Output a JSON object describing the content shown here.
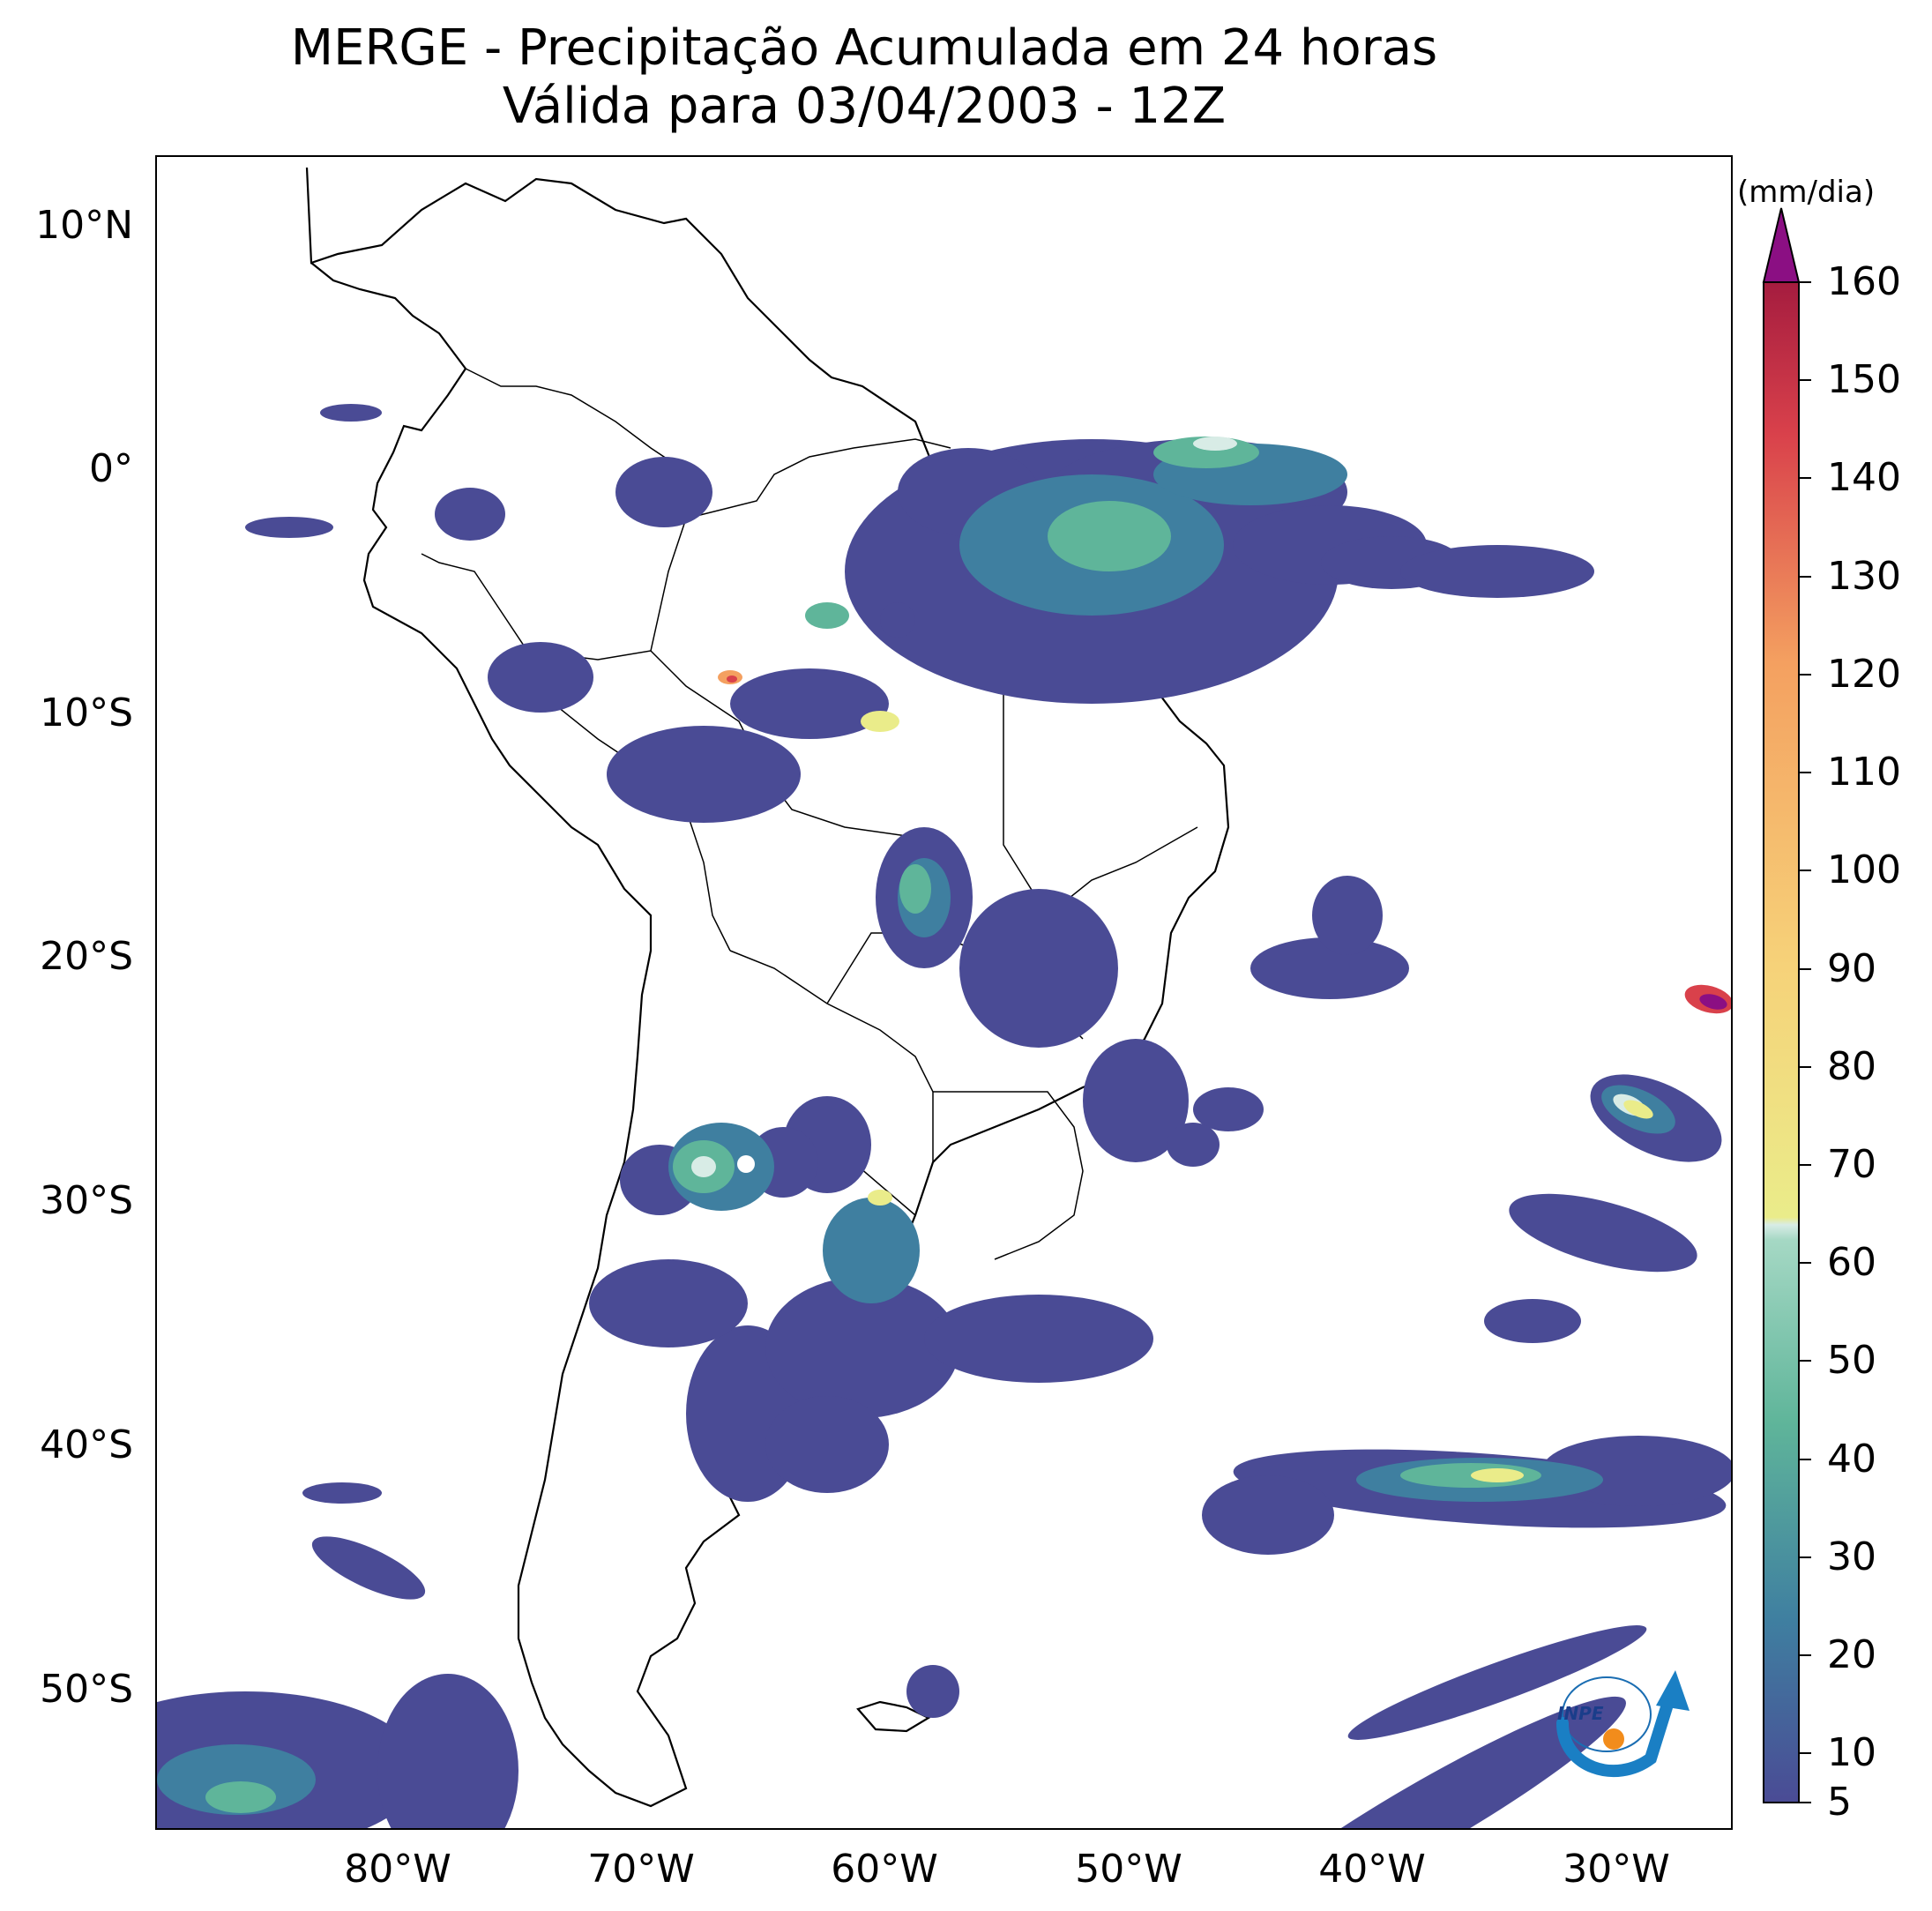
{
  "title": {
    "line1": "MERGE - Precipitação Acumulada em 24 horas",
    "line2": "Válida para 03/04/2003 - 12Z"
  },
  "map": {
    "lat_labels": [
      "10°N",
      "0°",
      "10°S",
      "20°S",
      "30°S",
      "40°S",
      "50°S"
    ],
    "lon_labels": [
      "80°W",
      "70°W",
      "60°W",
      "50°W",
      "40°W",
      "30°W"
    ],
    "extent": {
      "lon": [
        -90,
        -25
      ],
      "lat": [
        -56,
        13
      ]
    }
  },
  "colorbar": {
    "unit": "(mm/dia)",
    "tick_labels": [
      "5",
      "10",
      "20",
      "30",
      "40",
      "50",
      "60",
      "70",
      "80",
      "90",
      "100",
      "110",
      "120",
      "130",
      "140",
      "150",
      "160"
    ],
    "colors": {
      "low": "#4a4b95",
      "mid_low": "#3f7fa0",
      "mid": "#5fb59a",
      "light": "#d8ece6",
      "yellow": "#eaec8a",
      "orange": "#f4a060",
      "red": "#d9414b",
      "top": "#8b0f83"
    }
  },
  "logo": {
    "text": "INPE"
  }
}
